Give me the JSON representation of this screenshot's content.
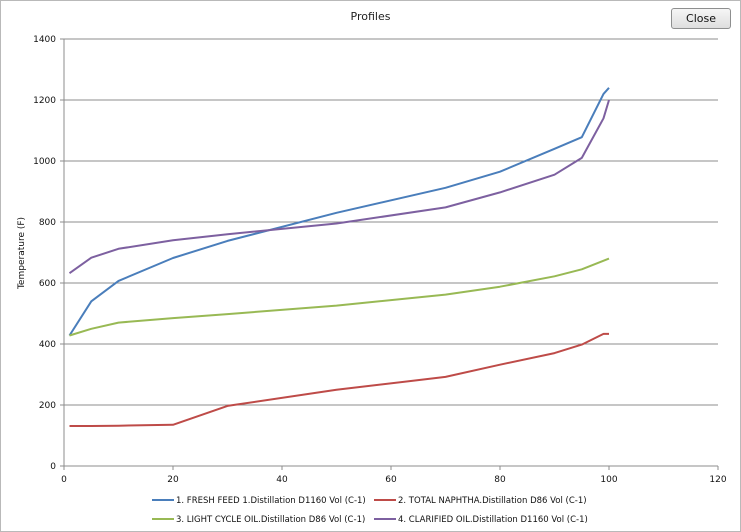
{
  "window": {
    "title": "Profiles",
    "close_label": "Close"
  },
  "chart_data": {
    "type": "line",
    "title": "",
    "xlabel": "",
    "ylabel": "Temperature (F)",
    "xlim": [
      0,
      120
    ],
    "ylim": [
      0,
      1400
    ],
    "x_ticks": [
      0,
      20,
      40,
      60,
      80,
      100,
      120
    ],
    "y_ticks": [
      0,
      200,
      400,
      600,
      800,
      1000,
      1200,
      1400
    ],
    "grid": "horizontal",
    "legend_position": "bottom",
    "series": [
      {
        "name": "1. FRESH FEED 1.Distillation D1160 Vol (C-1)",
        "color": "#4a7ebb",
        "x": [
          1,
          5,
          10,
          20,
          30,
          50,
          70,
          80,
          90,
          95,
          99,
          100
        ],
        "y": [
          428,
          540,
          607,
          682,
          738,
          830,
          912,
          965,
          1040,
          1078,
          1220,
          1240
        ]
      },
      {
        "name": "2. TOTAL NAPHTHA.Distillation D86 Vol (C-1)",
        "color": "#be4b48",
        "x": [
          1,
          5,
          10,
          20,
          30,
          50,
          70,
          80,
          90,
          95,
          99,
          100
        ],
        "y": [
          131,
          131,
          132,
          135,
          197,
          250,
          292,
          332,
          370,
          398,
          433,
          433
        ]
      },
      {
        "name": "3. LIGHT CYCLE OIL.Distillation D86 Vol (C-1)",
        "color": "#98b954",
        "x": [
          1,
          5,
          10,
          20,
          30,
          50,
          70,
          80,
          90,
          95,
          100
        ],
        "y": [
          428,
          450,
          470,
          485,
          498,
          526,
          562,
          588,
          622,
          645,
          680
        ]
      },
      {
        "name": "4. CLARIFIED OIL.Distillation D1160 Vol (C-1)",
        "color": "#7d60a0",
        "x": [
          1,
          5,
          10,
          20,
          30,
          50,
          70,
          80,
          90,
          95,
          99,
          100
        ],
        "y": [
          632,
          683,
          712,
          740,
          760,
          795,
          848,
          897,
          955,
          1010,
          1140,
          1200
        ]
      }
    ]
  }
}
